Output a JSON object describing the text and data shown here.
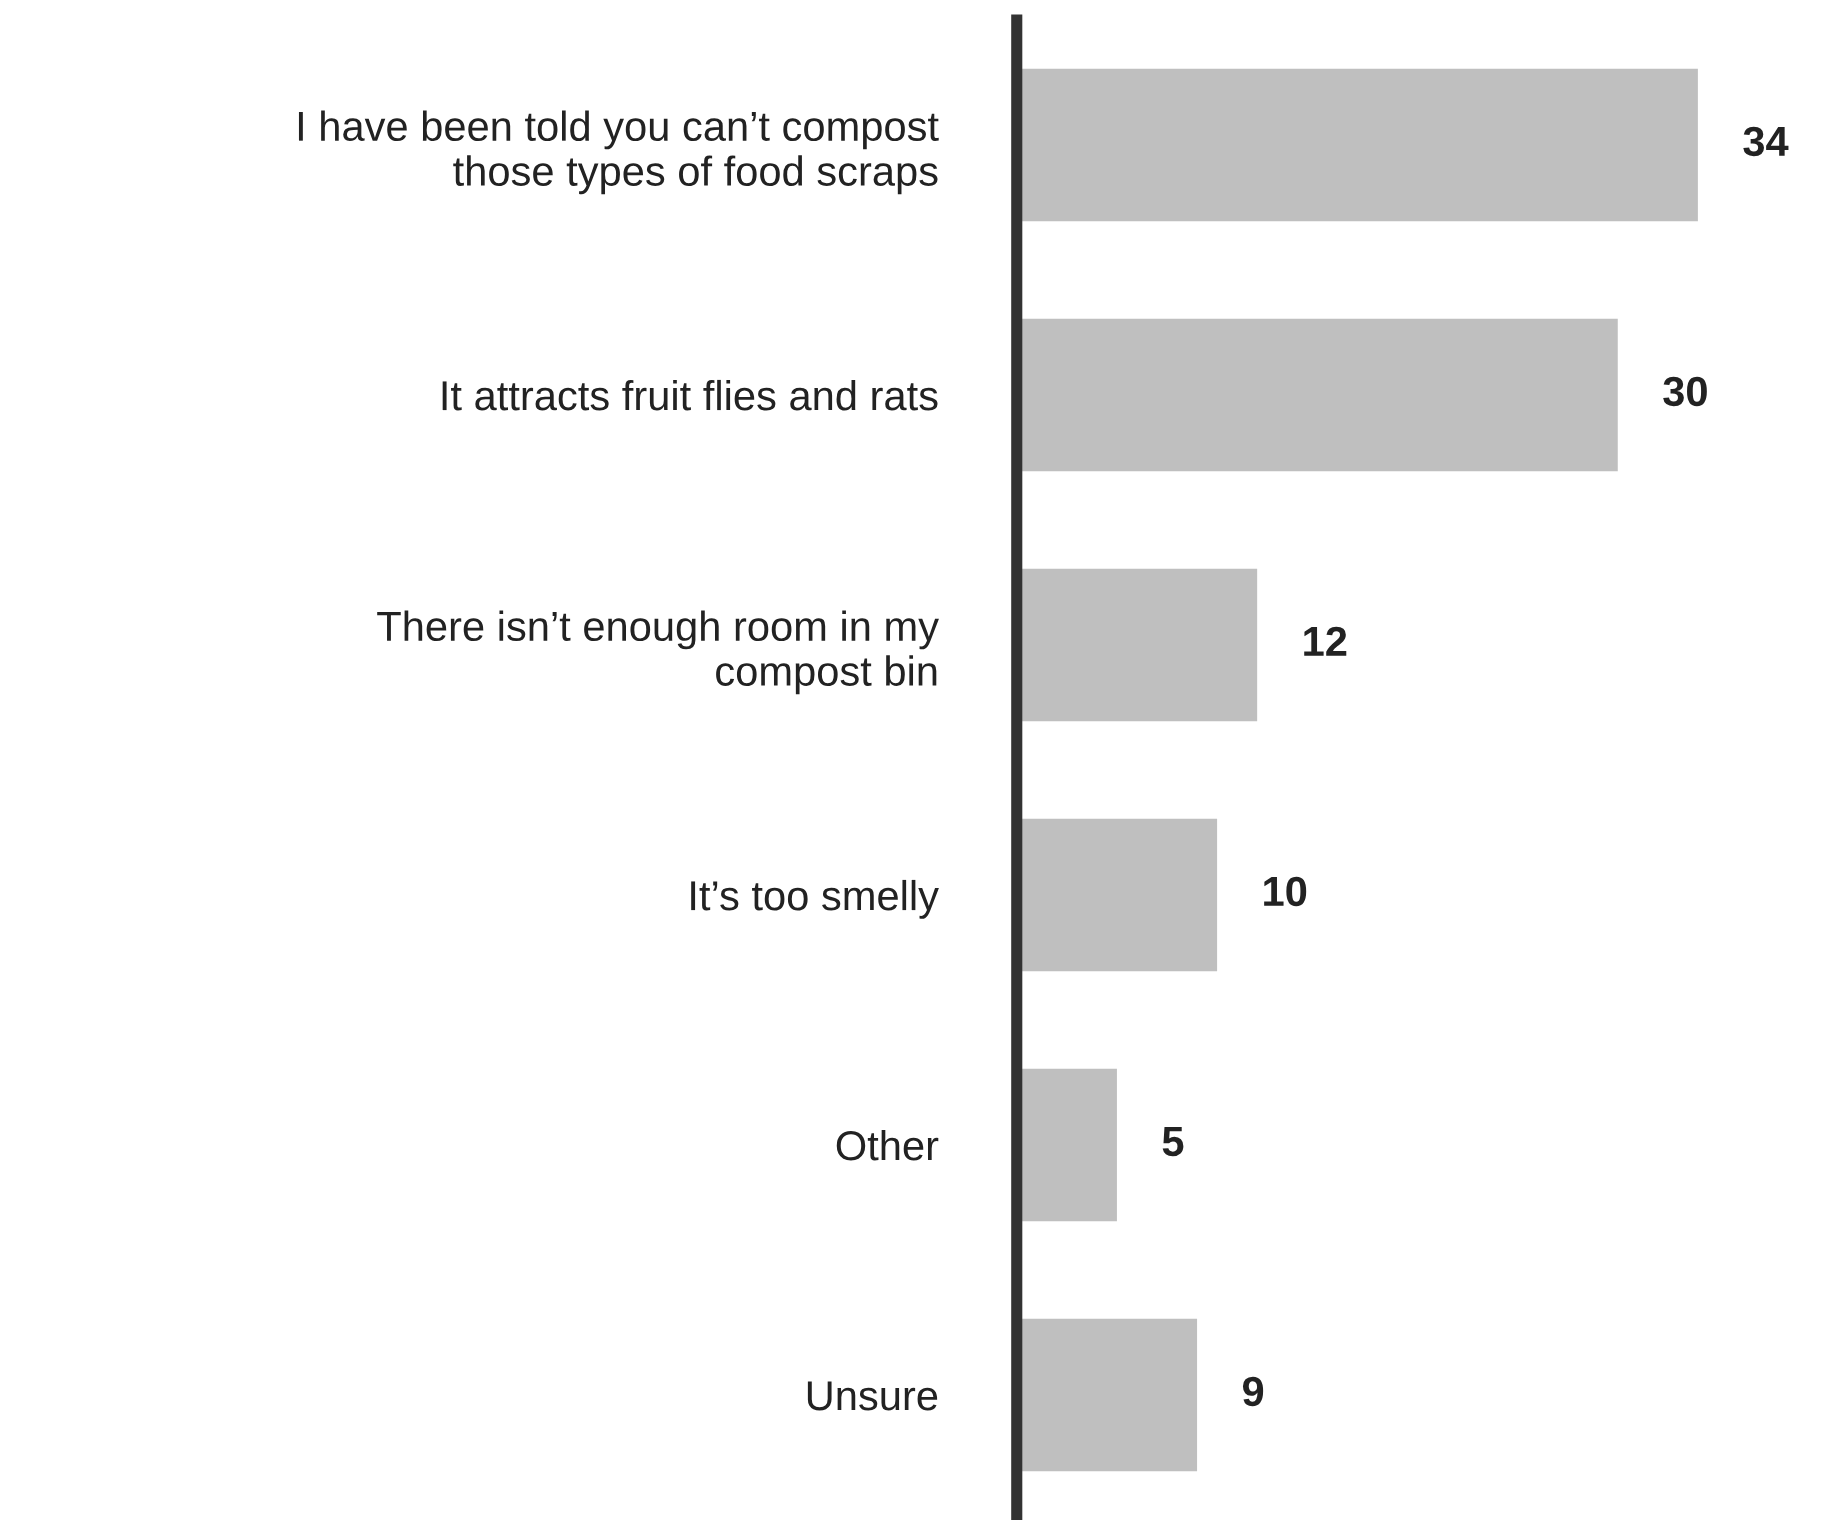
{
  "chart_data": {
    "type": "bar",
    "orientation": "horizontal",
    "categories": [
      "I have been told you can’t compost\nthose types of food scraps",
      "It attracts fruit flies and rats",
      "There isn’t enough room in my\ncompost bin",
      "It’s too smelly",
      "Other",
      "Unsure"
    ],
    "values": [
      34,
      30,
      12,
      10,
      5,
      9
    ],
    "color": "#bfbfbf",
    "tick_labels": "y",
    "data_labels": true,
    "grid": false,
    "legend": false
  }
}
